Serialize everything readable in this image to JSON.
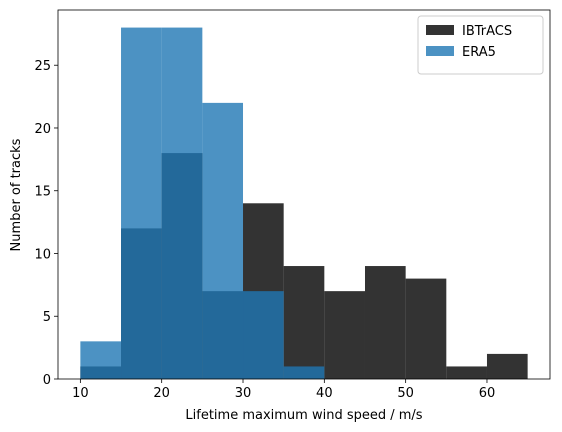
{
  "chart_data": {
    "type": "histogram",
    "xlabel": "Lifetime maximum wind speed / m/s",
    "ylabel": "Number of tracks",
    "xlim": [
      7.25,
      67.75
    ],
    "ylim": [
      0,
      29.4
    ],
    "xticks": [
      10,
      20,
      30,
      40,
      50,
      60
    ],
    "yticks": [
      0,
      5,
      10,
      15,
      20,
      25
    ],
    "legend": "upper right",
    "series": [
      {
        "name": "IBTrACS",
        "color": "#000000",
        "bins": [
          10,
          15,
          20,
          25,
          30,
          35,
          40,
          45,
          50,
          55,
          60,
          65
        ],
        "values": [
          1,
          12,
          18,
          7,
          14,
          9,
          7,
          9,
          8,
          1,
          2
        ]
      },
      {
        "name": "ERA5",
        "color": "#1f77b4",
        "bins": [
          10,
          15,
          20,
          25,
          30,
          35,
          40
        ],
        "values": [
          3,
          28,
          28,
          22,
          7,
          1
        ]
      }
    ]
  }
}
